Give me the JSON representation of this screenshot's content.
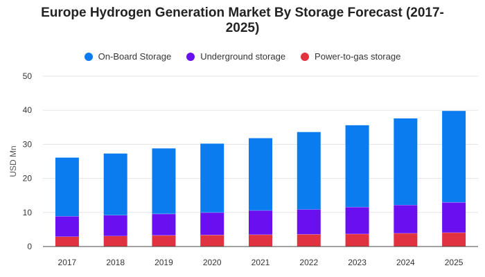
{
  "chart_data": {
    "type": "bar",
    "stacked": true,
    "title": "Europe Hydrogen Generation Market By Storage Forecast (2017-2025)",
    "xlabel": "",
    "ylabel": "USD Mn",
    "ylim": [
      0,
      50
    ],
    "yticks": [
      0,
      10,
      20,
      30,
      40,
      50
    ],
    "grid": true,
    "legend_position": "top-center",
    "categories": [
      "2017",
      "2018",
      "2019",
      "2020",
      "2021",
      "2022",
      "2023",
      "2024",
      "2025"
    ],
    "series": [
      {
        "name": "Power-to-gas storage",
        "color": "#e0323f",
        "values": [
          2.9,
          3.1,
          3.3,
          3.4,
          3.5,
          3.6,
          3.7,
          3.9,
          4.1
        ]
      },
      {
        "name": "Underground storage",
        "color": "#6a0ff0",
        "values": [
          6.0,
          6.1,
          6.3,
          6.6,
          7.1,
          7.3,
          7.9,
          8.3,
          8.9
        ]
      },
      {
        "name": "On-Board Storage",
        "color": "#0b7cf0",
        "values": [
          17.2,
          18.1,
          19.2,
          20.2,
          21.2,
          22.7,
          24.0,
          25.4,
          26.8
        ]
      }
    ],
    "legend_order": [
      "On-Board Storage",
      "Underground storage",
      "Power-to-gas storage"
    ]
  }
}
